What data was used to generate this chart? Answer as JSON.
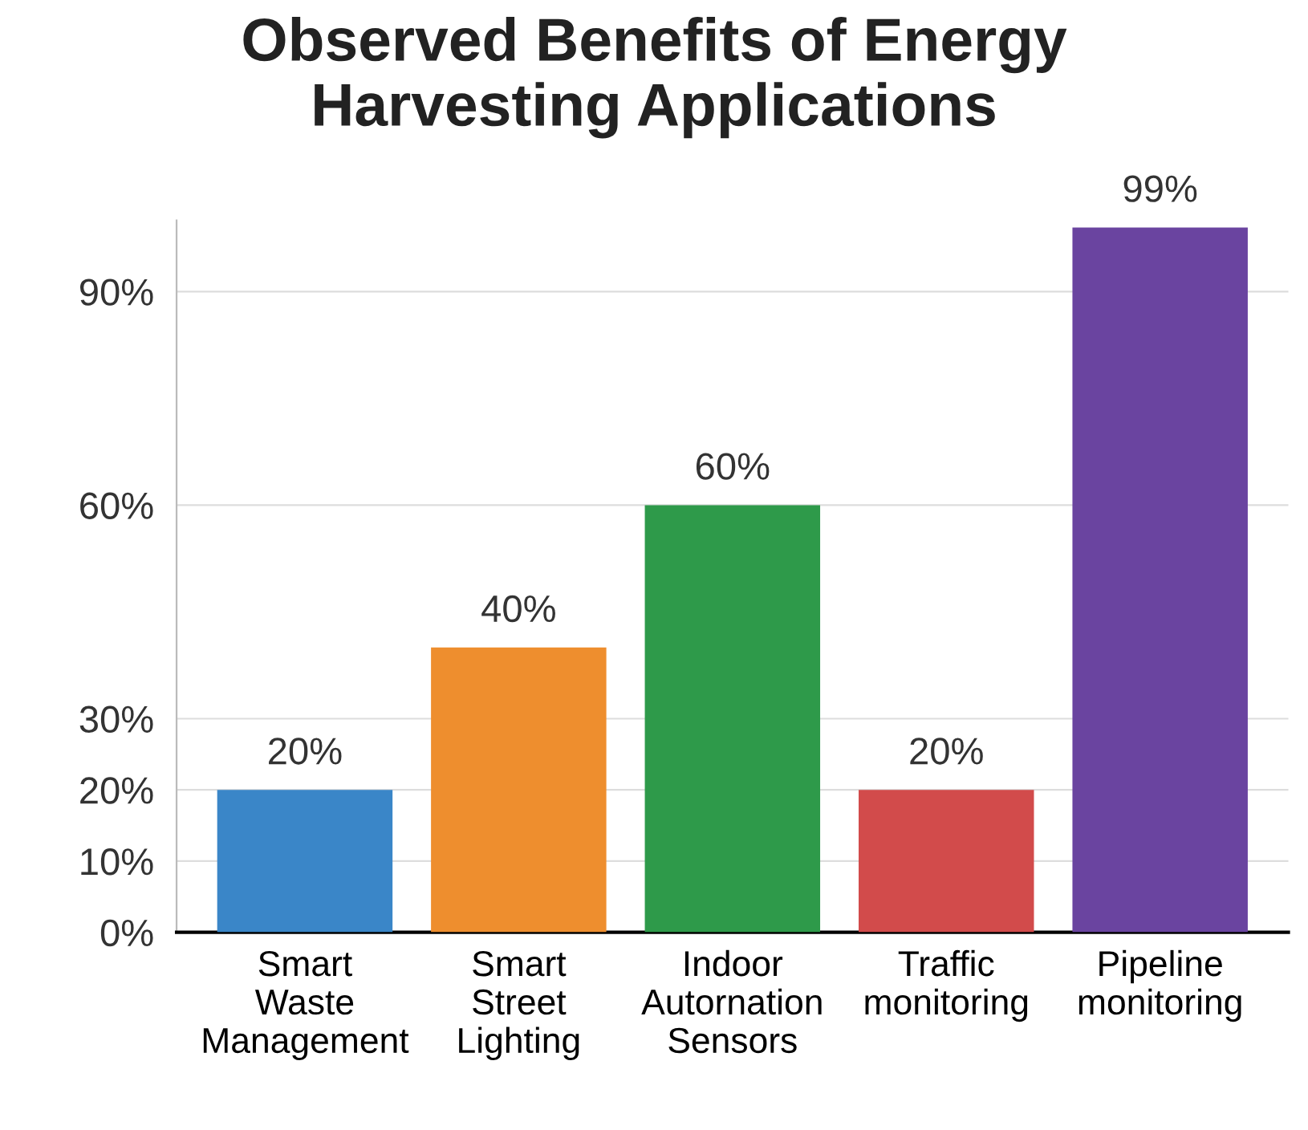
{
  "chart_data": {
    "type": "bar",
    "title": "Observed Benefits of Energy\nHarvesting Applications",
    "categories": [
      "Smart\nWaste\nManagement",
      "Smart\nStreet\nLighting",
      "Indoor\nAutornation\nSensors",
      "Traffic\nmonitoring",
      "Pipeline\nmonitoring"
    ],
    "values": [
      20,
      40,
      60,
      20,
      99
    ],
    "value_labels": [
      "20%",
      "40%",
      "60%",
      "20%",
      "99%"
    ],
    "colors": [
      "#3a86c8",
      "#ee8e2e",
      "#2e9a4a",
      "#d24b4b",
      "#6a44a0"
    ],
    "ylim": [
      0,
      100
    ],
    "yticks": [
      {
        "value": 0,
        "label": "0%"
      },
      {
        "value": 10,
        "label": "10%"
      },
      {
        "value": 20,
        "label": "20%"
      },
      {
        "value": 30,
        "label": "30%"
      },
      {
        "value": 60,
        "label": "60%"
      },
      {
        "value": 90,
        "label": "90%"
      }
    ],
    "grid": "y"
  }
}
